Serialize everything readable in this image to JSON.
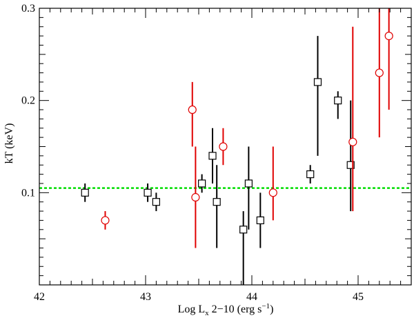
{
  "chart_data": {
    "type": "scatter",
    "title": "",
    "xlabel": "Log Lₓ 2−10 (erg s⁻¹)",
    "ylabel": "kT (keV)",
    "xlim": [
      42.0,
      45.5
    ],
    "ylim": [
      0.0,
      0.3
    ],
    "xticks": [
      42,
      43,
      44,
      45
    ],
    "yticks": [
      0.1,
      0.2,
      0.3
    ],
    "x_tick_labels": [
      "42",
      "43",
      "44",
      "45"
    ],
    "y_tick_labels": [
      "0.1",
      "0.2",
      "0.3"
    ],
    "reference_line": {
      "y": 0.105,
      "color": "#00dd00",
      "style": "dashed"
    },
    "series": [
      {
        "marker": "square",
        "color": "#000000",
        "points": [
          {
            "x": 42.43,
            "y": 0.1,
            "ylo": 0.09,
            "yhi": 0.11
          },
          {
            "x": 43.02,
            "y": 0.1,
            "ylo": 0.09,
            "yhi": 0.11
          },
          {
            "x": 43.1,
            "y": 0.09,
            "ylo": 0.08,
            "yhi": 0.1
          },
          {
            "x": 43.53,
            "y": 0.11,
            "ylo": 0.1,
            "yhi": 0.12
          },
          {
            "x": 43.63,
            "y": 0.14,
            "ylo": 0.11,
            "yhi": 0.17
          },
          {
            "x": 43.67,
            "y": 0.09,
            "ylo": 0.04,
            "yhi": 0.13
          },
          {
            "x": 43.92,
            "y": 0.06,
            "ylo": 0.0,
            "yhi": 0.08
          },
          {
            "x": 43.97,
            "y": 0.11,
            "ylo": 0.06,
            "yhi": 0.15
          },
          {
            "x": 44.08,
            "y": 0.07,
            "ylo": 0.04,
            "yhi": 0.1
          },
          {
            "x": 44.55,
            "y": 0.12,
            "ylo": 0.11,
            "yhi": 0.13
          },
          {
            "x": 44.62,
            "y": 0.22,
            "ylo": 0.14,
            "yhi": 0.27
          },
          {
            "x": 44.81,
            "y": 0.2,
            "ylo": 0.18,
            "yhi": 0.21
          },
          {
            "x": 44.93,
            "y": 0.13,
            "ylo": 0.08,
            "yhi": 0.2
          }
        ]
      },
      {
        "marker": "circle",
        "color": "#e00000",
        "points": [
          {
            "x": 42.62,
            "y": 0.07,
            "ylo": 0.06,
            "yhi": 0.08
          },
          {
            "x": 43.44,
            "y": 0.19,
            "ylo": 0.15,
            "yhi": 0.22
          },
          {
            "x": 43.47,
            "y": 0.095,
            "ylo": 0.04,
            "yhi": 0.15
          },
          {
            "x": 43.73,
            "y": 0.15,
            "ylo": 0.13,
            "yhi": 0.17
          },
          {
            "x": 44.2,
            "y": 0.1,
            "ylo": 0.07,
            "yhi": 0.15
          },
          {
            "x": 44.95,
            "y": 0.155,
            "ylo": 0.08,
            "yhi": 0.28
          },
          {
            "x": 45.2,
            "y": 0.23,
            "ylo": 0.16,
            "yhi": 0.3
          },
          {
            "x": 45.29,
            "y": 0.27,
            "ylo": 0.19,
            "yhi": 0.3
          }
        ]
      }
    ]
  }
}
